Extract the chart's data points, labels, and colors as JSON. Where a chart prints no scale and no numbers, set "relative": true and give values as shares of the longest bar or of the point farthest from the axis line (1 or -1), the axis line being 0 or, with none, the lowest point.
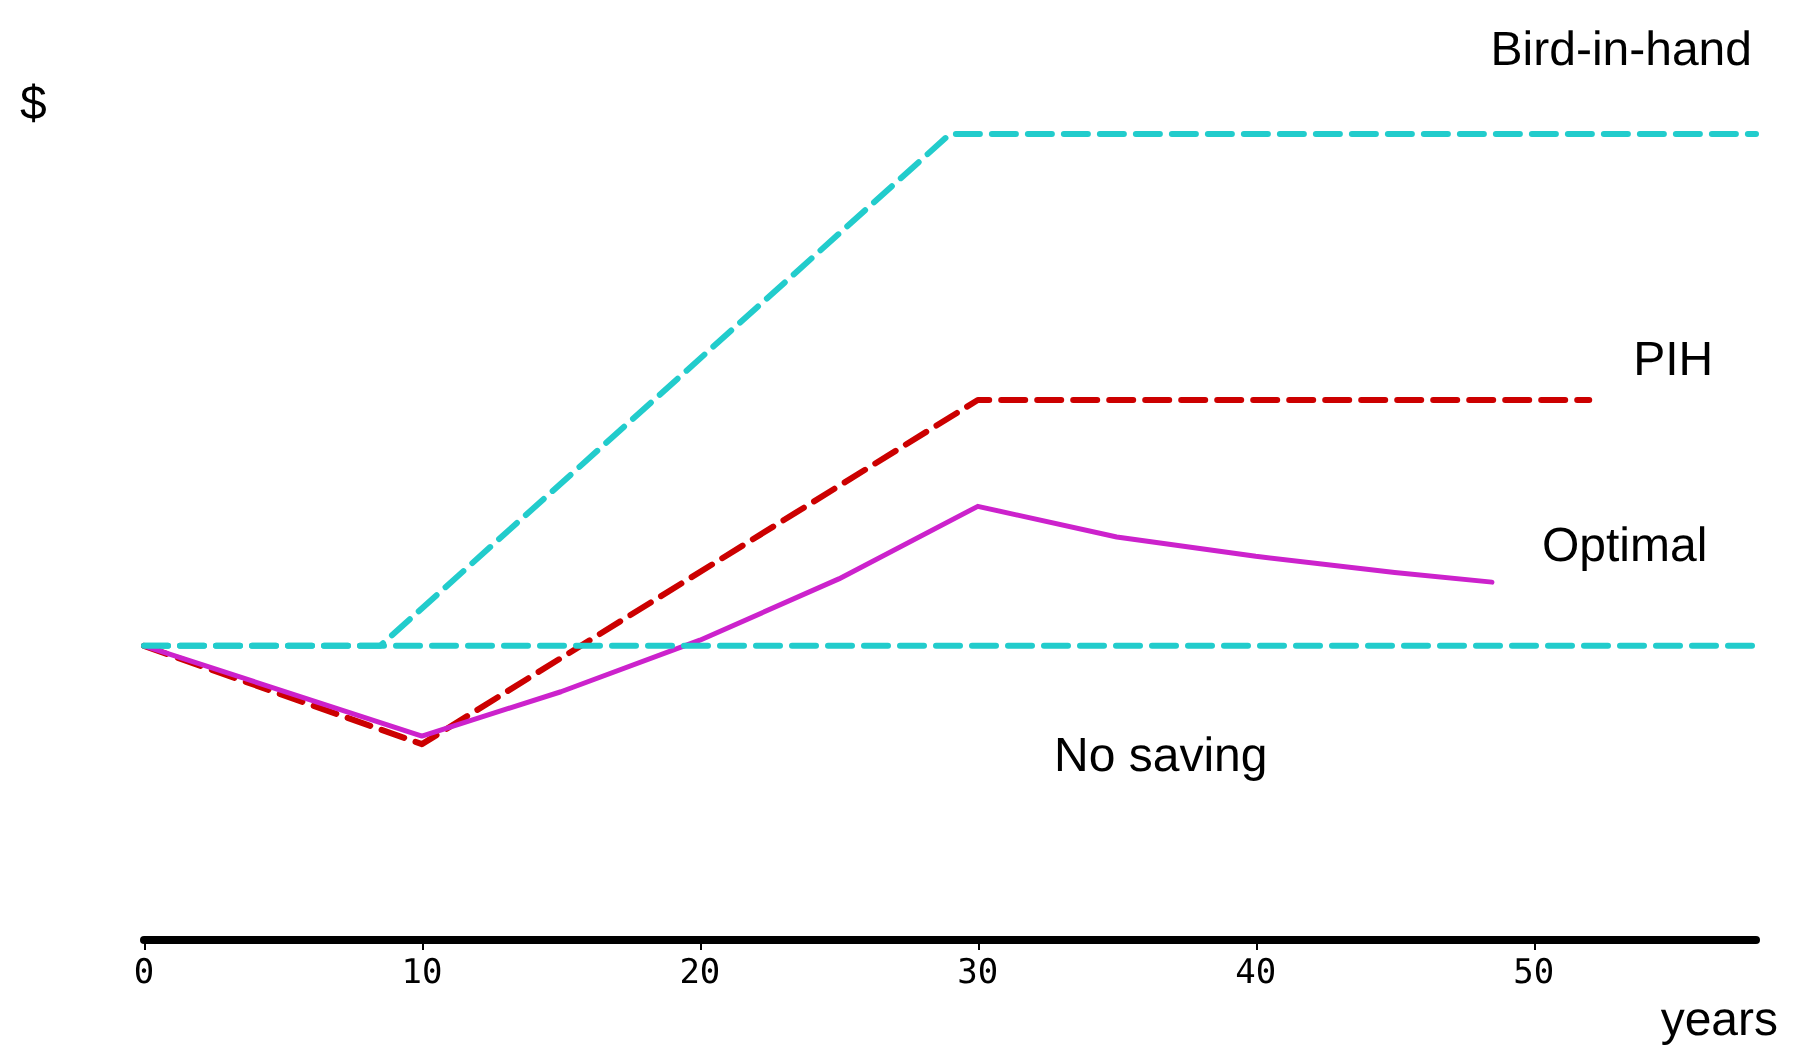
{
  "chart_data": {
    "type": "line",
    "relative": true,
    "xlabel": "years",
    "ylabel": "$",
    "xlim": [
      0,
      58
    ],
    "xticks": [
      0,
      10,
      20,
      30,
      40,
      50
    ],
    "grid": false,
    "legend": false,
    "series": [
      {
        "name": "Bird-in-hand",
        "color": "#22cccc",
        "line_style": "dashed",
        "x": [
          0,
          8.5,
          29,
          58
        ],
        "values": [
          0.365,
          0.365,
          1,
          1
        ]
      },
      {
        "name": "PIH",
        "color": "#cc0000",
        "line_style": "dashed",
        "x": [
          0,
          10,
          30,
          52
        ],
        "values": [
          0.365,
          0.243,
          0.67,
          0.67
        ]
      },
      {
        "name": "Optimal",
        "color": "#cc22cc",
        "line_style": "solid",
        "x": [
          0,
          10,
          15,
          20,
          25,
          30,
          35,
          40,
          45,
          48.5
        ],
        "values": [
          0.365,
          0.253,
          0.308,
          0.372,
          0.448,
          0.538,
          0.5,
          0.476,
          0.456,
          0.444
        ]
      },
      {
        "name": "No saving",
        "color": "#22cccc",
        "line_style": "dashed",
        "x": [
          0,
          58
        ],
        "values": [
          0.365,
          0.365
        ]
      }
    ]
  }
}
